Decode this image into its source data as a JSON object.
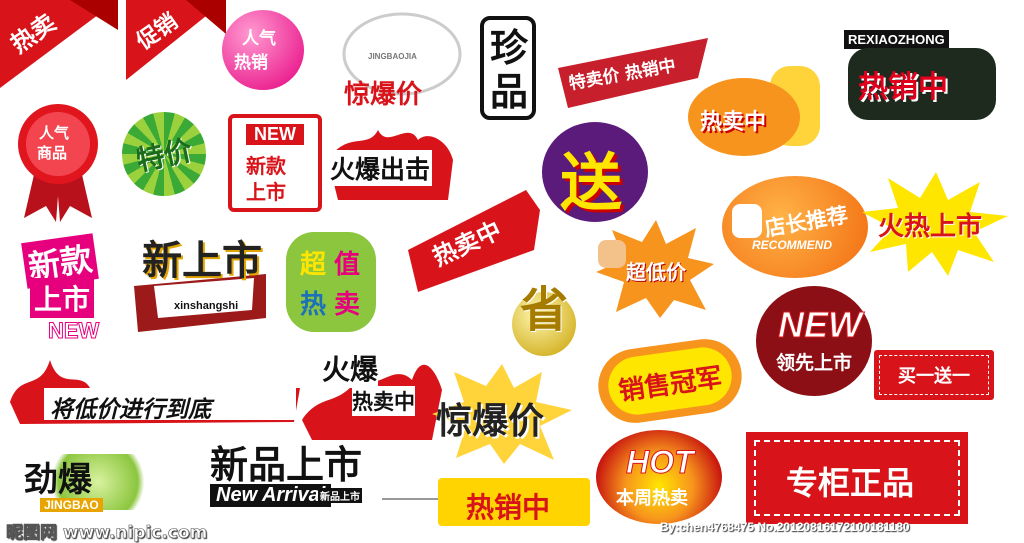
{
  "stickers": {
    "s1": "热卖",
    "s2": "促销",
    "s3": [
      "人气",
      "热销"
    ],
    "s4_pinyin": "JINGBAOJIA",
    "s4": "惊爆价",
    "s5": "珍品",
    "s6": "特卖价 热销中",
    "s7_pinyin": "REXIAOZHONG",
    "s7": "热销中",
    "s8": [
      "人气",
      "商品"
    ],
    "s9": "特价",
    "s10_new": "NEW",
    "s10": [
      "新款",
      "上市"
    ],
    "s11": "火爆出击",
    "s12": "送",
    "s13": "热卖中",
    "s14": "热卖中",
    "s15": "店长推荐",
    "s15_en": "RECOMMEND",
    "s16": "火热上市",
    "s17": [
      "新款",
      "上市"
    ],
    "s17_en": "NEW",
    "s18": "新上市",
    "s18_pinyin": "xinshangshi",
    "s19": [
      "超",
      "值",
      "热",
      "卖"
    ],
    "s20": "省",
    "s21": "超低价",
    "s22": "NEW",
    "s22_sub": "领先上市",
    "s23": "买一送一",
    "s24": "将低价进行到底",
    "s25": [
      "火爆",
      "热卖中"
    ],
    "s26": "惊爆价",
    "s27": "销售冠军",
    "s28": "劲爆",
    "s28_en": "JINGBAO",
    "s29": "新品上市",
    "s29_en": "New Arrival",
    "s29_sub": "新品上市",
    "s30": "热销中",
    "s31": "HOT",
    "s31_sub": "本周热卖",
    "s32": "专柜正品"
  },
  "watermark_left": "昵图网 www.nipic.com",
  "watermark_right": "By:chen4768475  No.20120816172100181180",
  "colors": {
    "red": "#d8141a",
    "orange": "#f7941d",
    "yellow": "#ffe600",
    "pink": "#e6007e",
    "green": "#3aa935"
  }
}
